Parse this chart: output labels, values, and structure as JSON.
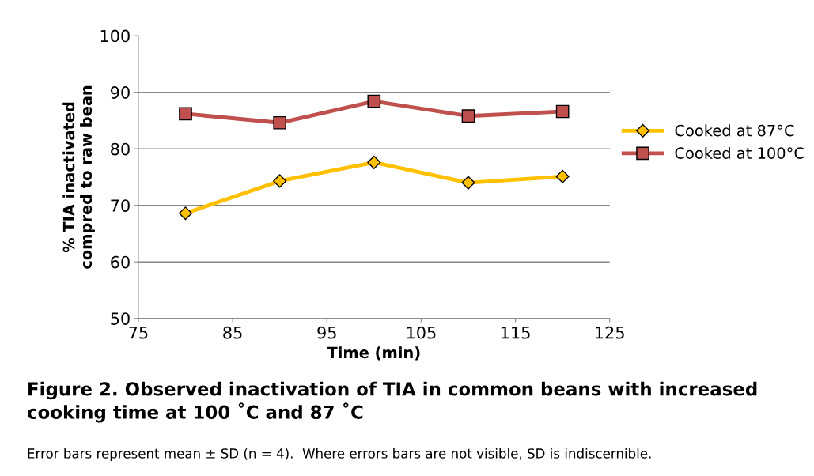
{
  "chart_data": {
    "type": "line",
    "title": "Figure 2. Observed inactivation of TIA in common beans with increased cooking time at 100 ˚C and 87 ˚C",
    "xlabel": "Time (min)",
    "ylabel": "% TIA inactivated\ncompred to raw bean",
    "annotations": [
      "Error bars represent mean ± SD (n = 4).  Where errors bars are not visible, SD is indiscernible."
    ],
    "x": [
      80,
      90,
      100,
      110,
      120
    ],
    "series": [
      {
        "name": "Cooked at 87°C",
        "color": "#ffc000",
        "marker": "diamond",
        "values": [
          68.6,
          74.3,
          77.6,
          74.0,
          75.1
        ]
      },
      {
        "name": "Cooked at 100°C",
        "color": "#c0504d",
        "marker": "square",
        "values": [
          86.2,
          84.6,
          88.4,
          85.8,
          86.6
        ]
      }
    ],
    "xlim": [
      75,
      125
    ],
    "xticks": [
      75,
      85,
      95,
      105,
      115,
      125
    ],
    "ylim": [
      50,
      100
    ],
    "yticks": [
      50,
      60,
      70,
      80,
      90,
      100
    ],
    "grid": "y",
    "legend": "right",
    "line_style": "solid"
  }
}
